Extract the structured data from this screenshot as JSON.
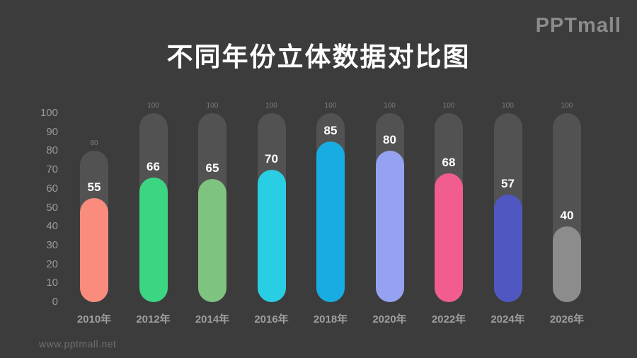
{
  "page": {
    "background": "#3C3C3C"
  },
  "header": {
    "title": "不同年份立体数据对比图",
    "logo": "PPTmall"
  },
  "footer": {
    "watermark": "www.pptmall.net"
  },
  "chart_data": {
    "type": "bar",
    "title": "不同年份立体数据对比图",
    "categories": [
      "2010年",
      "2012年",
      "2014年",
      "2016年",
      "2018年",
      "2020年",
      "2022年",
      "2024年",
      "2026年"
    ],
    "values": [
      55,
      66,
      65,
      70,
      85,
      80,
      68,
      57,
      40
    ],
    "track_max": [
      80,
      100,
      100,
      100,
      100,
      100,
      100,
      100,
      100
    ],
    "bar_colors": [
      "#F98C7D",
      "#3CD581",
      "#7EC37F",
      "#29CEE4",
      "#17ADE3",
      "#95A2F2",
      "#F05D8E",
      "#5057C1",
      "#8C8C8C"
    ],
    "track_color": "#525252",
    "y_ticks": [
      100,
      90,
      80,
      70,
      60,
      50,
      40,
      30,
      20,
      10,
      0
    ],
    "ylim": [
      0,
      100
    ],
    "xlabel": "",
    "ylabel": "",
    "grid": false,
    "legend": "none",
    "value_label_color": "#FFFFFF",
    "max_label_color": "#7E7E7E",
    "background_color": "#3C3C3C"
  }
}
